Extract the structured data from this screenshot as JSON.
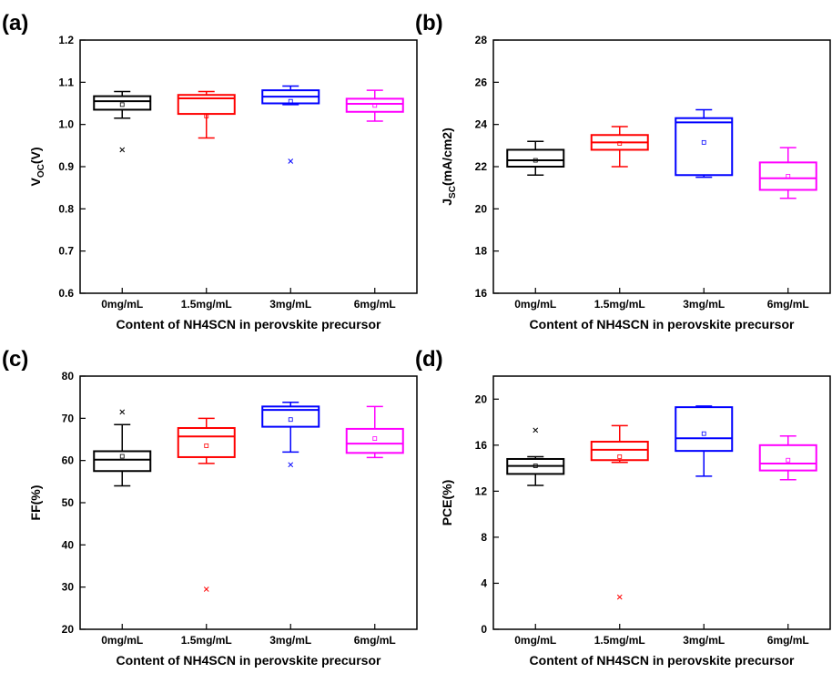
{
  "chart_data": [
    {
      "type": "box",
      "panel_label": "(a)",
      "ylabel": "V",
      "ylabel_sub": "OC",
      "ylabel_suffix": "(V)",
      "xlabel": "Content of NH4SCN in perovskite precursor",
      "categories": [
        "0mg/mL",
        "1.5mg/mL",
        "3mg/mL",
        "6mg/mL"
      ],
      "ylim": [
        0.6,
        1.2
      ],
      "yticks": [
        "0.6",
        "0.7",
        "0.8",
        "0.9",
        "1.0",
        "1.1",
        "1.2"
      ],
      "series": [
        {
          "color": "#000000",
          "whisker_low": 1.015,
          "q1": 1.035,
          "median": 1.055,
          "q3": 1.067,
          "whisker_high": 1.078,
          "mean": 1.047,
          "outliers": [
            0.94
          ]
        },
        {
          "color": "#ff0000",
          "whisker_low": 0.968,
          "q1": 1.025,
          "median": 1.062,
          "q3": 1.07,
          "whisker_high": 1.078,
          "mean": 1.02,
          "outliers": []
        },
        {
          "color": "#0000ff",
          "whisker_low": 1.047,
          "q1": 1.05,
          "median": 1.066,
          "q3": 1.081,
          "whisker_high": 1.091,
          "mean": 1.055,
          "outliers": [
            0.913
          ]
        },
        {
          "color": "#ff00ff",
          "whisker_low": 1.008,
          "q1": 1.03,
          "median": 1.049,
          "q3": 1.061,
          "whisker_high": 1.081,
          "mean": 1.045,
          "outliers": []
        }
      ]
    },
    {
      "type": "box",
      "panel_label": "(b)",
      "ylabel": "J",
      "ylabel_sub": "SC",
      "ylabel_suffix": "(mA/cm2)",
      "xlabel": "Content of NH4SCN in perovskite precursor",
      "categories": [
        "0mg/mL",
        "1.5mg/mL",
        "3mg/mL",
        "6mg/mL"
      ],
      "ylim": [
        16,
        28
      ],
      "yticks": [
        "16",
        "18",
        "20",
        "22",
        "24",
        "26",
        "28"
      ],
      "series": [
        {
          "color": "#000000",
          "whisker_low": 21.6,
          "q1": 22.0,
          "median": 22.3,
          "q3": 22.8,
          "whisker_high": 23.2,
          "mean": 22.3,
          "outliers": []
        },
        {
          "color": "#ff0000",
          "whisker_low": 22.0,
          "q1": 22.8,
          "median": 23.15,
          "q3": 23.5,
          "whisker_high": 23.9,
          "mean": 23.1,
          "outliers": []
        },
        {
          "color": "#0000ff",
          "whisker_low": 21.5,
          "q1": 21.6,
          "median": 24.1,
          "q3": 24.3,
          "whisker_high": 24.7,
          "mean": 23.15,
          "outliers": []
        },
        {
          "color": "#ff00ff",
          "whisker_low": 20.5,
          "q1": 20.9,
          "median": 21.45,
          "q3": 22.2,
          "whisker_high": 22.9,
          "mean": 21.55,
          "outliers": []
        }
      ]
    },
    {
      "type": "box",
      "panel_label": "(c)",
      "ylabel": "FF(%)",
      "ylabel_sub": "",
      "ylabel_suffix": "",
      "xlabel": "Content of NH4SCN in perovskite precursor",
      "categories": [
        "0mg/mL",
        "1.5mg/mL",
        "3mg/mL",
        "6mg/mL"
      ],
      "ylim": [
        20,
        80
      ],
      "yticks": [
        "20",
        "30",
        "40",
        "50",
        "60",
        "70",
        "80"
      ],
      "series": [
        {
          "color": "#000000",
          "whisker_low": 54.0,
          "q1": 57.5,
          "median": 60.2,
          "q3": 62.2,
          "whisker_high": 68.5,
          "mean": 61.0,
          "outliers": [
            71.5
          ]
        },
        {
          "color": "#ff0000",
          "whisker_low": 59.3,
          "q1": 60.8,
          "median": 65.7,
          "q3": 67.7,
          "whisker_high": 70.0,
          "mean": 63.5,
          "outliers": [
            29.5
          ]
        },
        {
          "color": "#0000ff",
          "whisker_low": 62.0,
          "q1": 68.0,
          "median": 72.0,
          "q3": 72.8,
          "whisker_high": 73.8,
          "mean": 69.7,
          "outliers": [
            59.0
          ]
        },
        {
          "color": "#ff00ff",
          "whisker_low": 60.7,
          "q1": 61.8,
          "median": 64.0,
          "q3": 67.5,
          "whisker_high": 72.8,
          "mean": 65.2,
          "outliers": []
        }
      ]
    },
    {
      "type": "box",
      "panel_label": "(d)",
      "ylabel": "PCE(%)",
      "ylabel_sub": "",
      "ylabel_suffix": "",
      "xlabel": "Content of NH4SCN in perovskite precursor",
      "categories": [
        "0mg/mL",
        "1.5mg/mL",
        "3mg/mL",
        "6mg/mL"
      ],
      "ylim": [
        0,
        22
      ],
      "yticks": [
        "0",
        "4",
        "8",
        "12",
        "16",
        "20"
      ],
      "series": [
        {
          "color": "#000000",
          "whisker_low": 12.5,
          "q1": 13.5,
          "median": 14.2,
          "q3": 14.8,
          "whisker_high": 15.0,
          "mean": 14.2,
          "outliers": [
            17.3
          ]
        },
        {
          "color": "#ff0000",
          "whisker_low": 14.5,
          "q1": 14.7,
          "median": 15.6,
          "q3": 16.3,
          "whisker_high": 17.7,
          "mean": 15.0,
          "outliers": [
            2.8
          ]
        },
        {
          "color": "#0000ff",
          "whisker_low": 13.3,
          "q1": 15.5,
          "median": 16.6,
          "q3": 19.3,
          "whisker_high": 19.4,
          "mean": 17.0,
          "outliers": []
        },
        {
          "color": "#ff00ff",
          "whisker_low": 13.0,
          "q1": 13.8,
          "median": 14.4,
          "q3": 16.0,
          "whisker_high": 16.8,
          "mean": 14.7,
          "outliers": []
        }
      ]
    }
  ]
}
